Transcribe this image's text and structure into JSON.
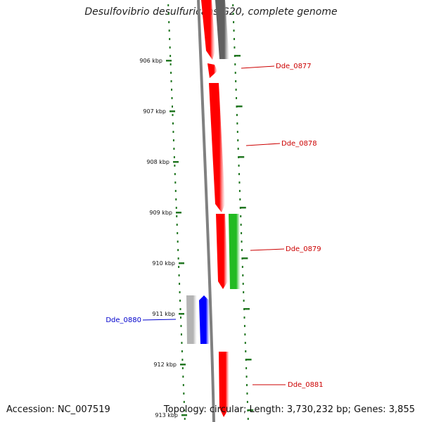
{
  "title": "Desulfovibrio desulfuricans G20, complete genome",
  "footer": {
    "accession": "Accession: NC_007519",
    "topology": "Topology: circular; Length: 3,730,232 bp; Genes: 3,855"
  },
  "ticks": [
    {
      "label": "906 kbp"
    },
    {
      "label": "907 kbp"
    },
    {
      "label": "908 kbp"
    },
    {
      "label": "909 kbp"
    },
    {
      "label": "910 kbp"
    },
    {
      "label": "911 kbp"
    },
    {
      "label": "912 kbp"
    },
    {
      "label": "913 kbp"
    }
  ],
  "genes": [
    {
      "name": "",
      "color": "#ff0000",
      "strand": "forward",
      "lane": "inner-right"
    },
    {
      "name": "",
      "color": "#606060",
      "strand": "forward",
      "lane": "outer-right"
    },
    {
      "name": "Dde_0877",
      "color": "#ff0000",
      "strand": "forward",
      "lane": "inner-right"
    },
    {
      "name": "Dde_0878",
      "color": "#ff0000",
      "strand": "forward",
      "lane": "inner-right"
    },
    {
      "name": "Dde_0879",
      "color": "#ff0000",
      "strand": "forward",
      "lane": "inner-right"
    },
    {
      "name": "",
      "color": "#22bb22",
      "strand": "forward",
      "lane": "outer-right"
    },
    {
      "name": "Dde_0880",
      "color": "#0000ff",
      "strand": "reverse",
      "lane": "inner-left"
    },
    {
      "name": "",
      "color": "#b4b4b4",
      "strand": "reverse",
      "lane": "outer-left"
    },
    {
      "name": "Dde_0881",
      "color": "#ff0000",
      "strand": "forward",
      "lane": "inner-right"
    }
  ],
  "colors": {
    "backbone": "#808080",
    "tick": "#227722",
    "label_forward": "#cc0000",
    "label_reverse": "#0000cc"
  }
}
